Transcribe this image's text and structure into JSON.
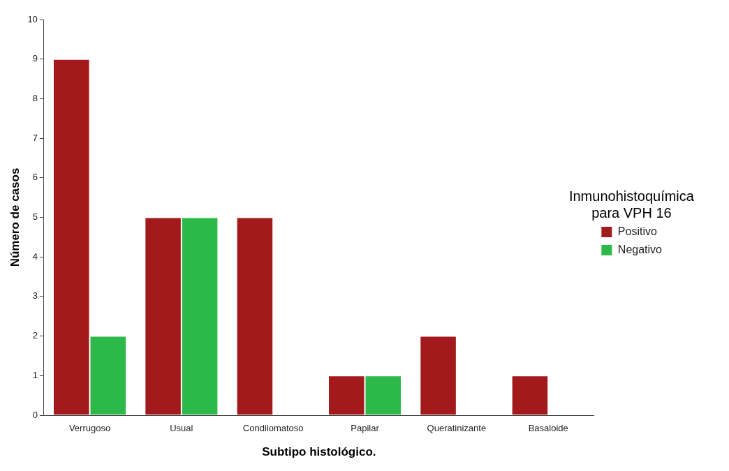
{
  "chart_data": {
    "type": "bar",
    "xlabel": "Subtipo histológico.",
    "ylabel": "Número de casos",
    "legend_title": "Inmunohistoquímica para VPH 16",
    "categories": [
      "Verrugoso",
      "Usual",
      "Condilomatoso",
      "Papilar",
      "Queratinizante",
      "Basaloide"
    ],
    "series": [
      {
        "name": "Positivo",
        "color": "#a31a1c",
        "values": [
          9,
          5,
          5,
          1,
          2,
          1
        ]
      },
      {
        "name": "Negativo",
        "color": "#2db84a",
        "values": [
          2,
          5,
          0,
          1,
          0,
          0
        ]
      }
    ],
    "ylim": [
      0,
      10
    ],
    "yticks": [
      0,
      1,
      2,
      3,
      4,
      5,
      6,
      7,
      8,
      9,
      10
    ],
    "grid": false,
    "legend": "right"
  }
}
